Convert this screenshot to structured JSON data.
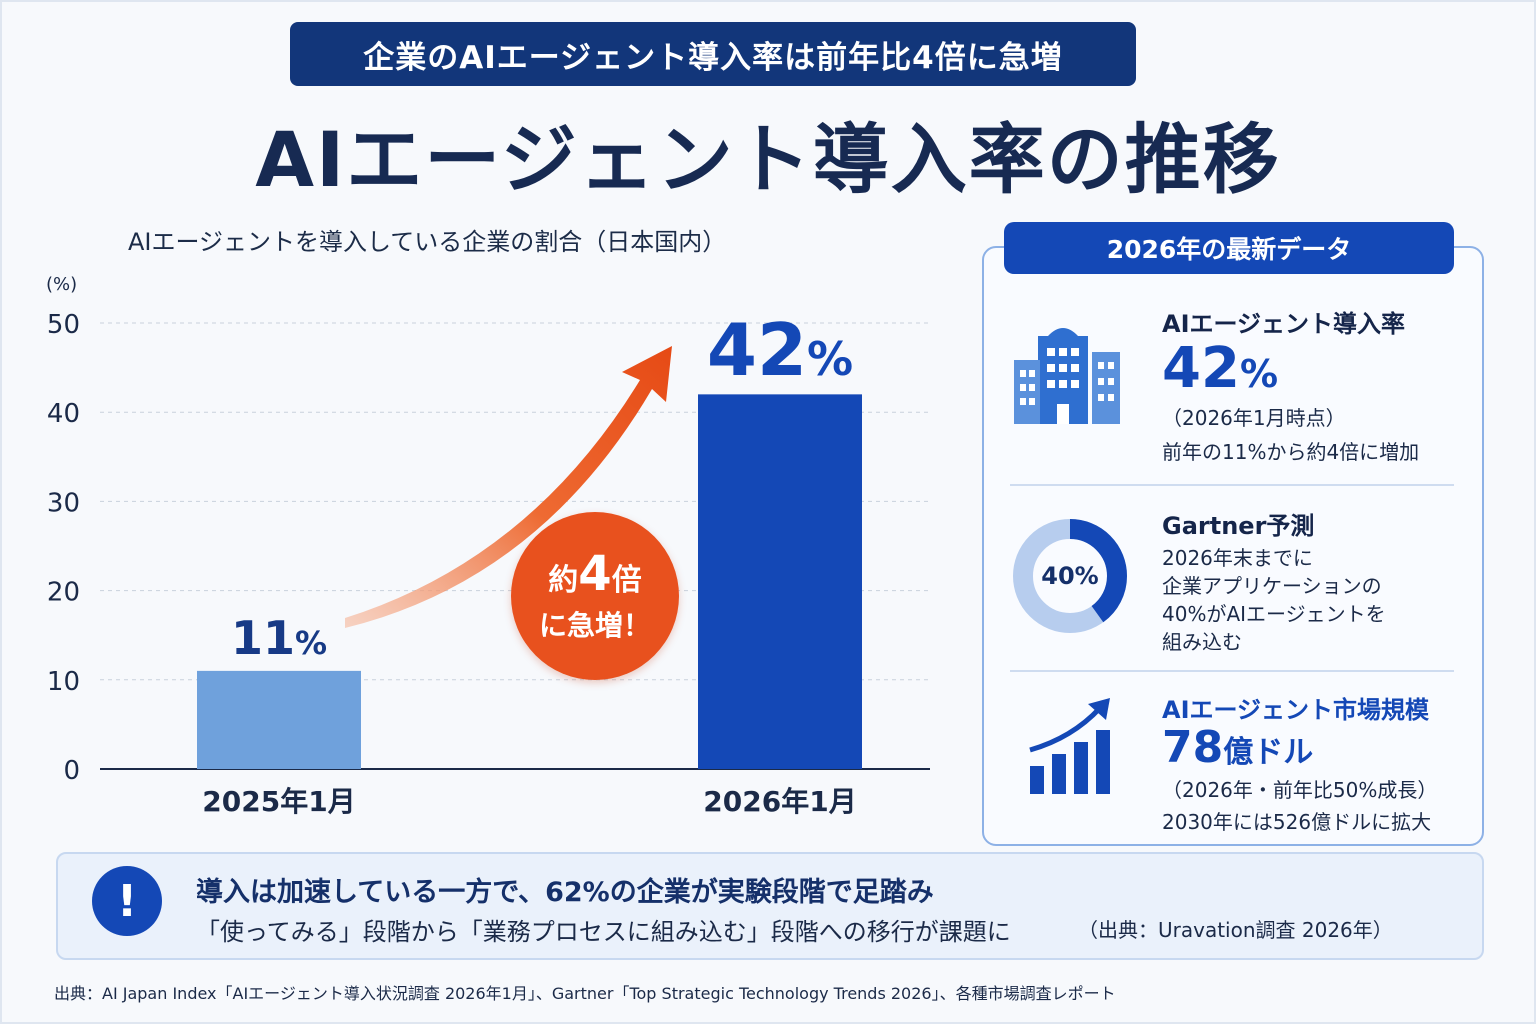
{
  "banner": "企業のAIエージェント導入率は前年比4倍に急増",
  "title": "AIエージェント導入率の推移",
  "chart_data": {
    "type": "bar",
    "title": "AIエージェント導入率の推移",
    "subtitle": "AIエージェントを導入している企業の割合（日本国内）",
    "ylabel": "(%)",
    "ylim": [
      0,
      50
    ],
    "yticks": [
      0,
      10,
      20,
      30,
      40,
      50
    ],
    "categories": [
      "2025年1月",
      "2026年1月"
    ],
    "values": [
      11,
      42
    ],
    "data_labels": [
      "11",
      "42"
    ],
    "unit": "%",
    "grid": true,
    "colors": [
      "#6fa1dc",
      "#1448b6"
    ],
    "annotation": {
      "line1_prefix": "約",
      "line1_num": "4",
      "line1_suffix": "倍",
      "line2": "に急増！"
    }
  },
  "panel": {
    "header": "2026年の最新データ",
    "items": [
      {
        "icon": "building-icon",
        "title": "AIエージェント導入率",
        "value": "42",
        "unit": "%",
        "lines": [
          "（2026年1月時点）",
          "前年の11%から約4倍に増加"
        ]
      },
      {
        "icon": "donut-chart-icon",
        "title": "Gartner予測",
        "donut_label": "40%",
        "donut_value": 40,
        "lines": [
          "2026年末までに",
          "企業アプリケーションの",
          "40%がAIエージェントを",
          "組み込む"
        ]
      },
      {
        "icon": "growth-chart-icon",
        "title": "AIエージェント市場規模",
        "value": "78",
        "unit": "億ドル",
        "lines": [
          "（2026年・前年比50%成長）",
          "2030年には526億ドルに拡大"
        ]
      }
    ]
  },
  "notice": {
    "icon": "exclamation-icon",
    "main": "導入は加速している一方で、62%の企業が実験段階で足踏み",
    "sub": "「使ってみる」段階から「業務プロセスに組み込む」段階への移行が課題に",
    "source": "（出典：Uravation調査 2026年）"
  },
  "footnote": "出典：AI Japan Index「AIエージェント導入状況調査 2026年1月」、Gartner「Top Strategic Technology Trends 2026」、各種市場調査レポート",
  "colors": {
    "navy": "#12367a",
    "blue": "#1448b6",
    "lightblue": "#6fa1dc",
    "orange": "#e8511e"
  }
}
